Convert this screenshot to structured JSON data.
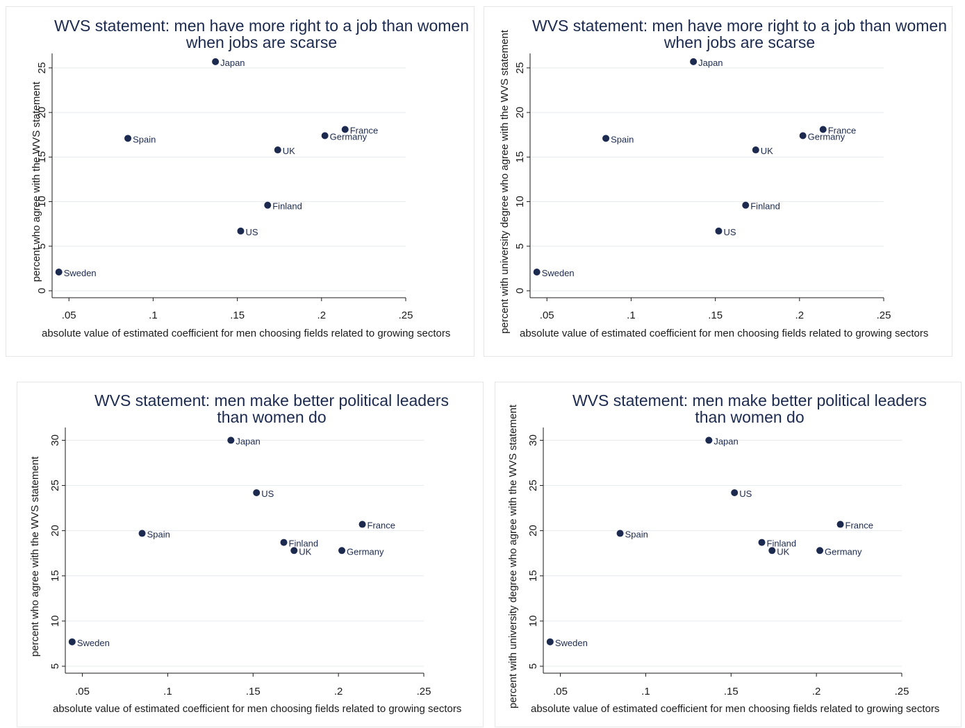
{
  "chart_data": [
    {
      "type": "scatter",
      "title": [
        "WVS statement: men have more right to a job than women",
        "when jobs are scarse"
      ],
      "xlabel": "absolute value of estimated coefficient for men choosing fields related to growing sectors",
      "ylabel": "percent who agree with the WVS statement",
      "xlim": [
        0.04,
        0.25
      ],
      "ylim": [
        0,
        26
      ],
      "xticks": [
        0.05,
        0.1,
        0.15,
        0.2,
        0.25
      ],
      "xtick_labels": [
        ".05",
        ".1",
        ".15",
        ".2",
        ".25"
      ],
      "yticks": [
        0,
        5,
        10,
        15,
        20,
        25
      ],
      "ytick_labels": [
        "0",
        "5",
        "10",
        "15",
        "20",
        "25"
      ],
      "grid": true,
      "points": [
        {
          "label": "Sweden",
          "x": 0.044,
          "y": 2.1
        },
        {
          "label": "Spain",
          "x": 0.085,
          "y": 17.1
        },
        {
          "label": "Japan",
          "x": 0.137,
          "y": 25.7
        },
        {
          "label": "US",
          "x": 0.152,
          "y": 6.7
        },
        {
          "label": "Finland",
          "x": 0.168,
          "y": 9.6
        },
        {
          "label": "UK",
          "x": 0.174,
          "y": 15.8
        },
        {
          "label": "Germany",
          "x": 0.202,
          "y": 17.4
        },
        {
          "label": "France",
          "x": 0.214,
          "y": 18.1
        }
      ]
    },
    {
      "type": "scatter",
      "title": [
        "WVS statement: men have more right to a job than women",
        "when jobs are scarse"
      ],
      "xlabel": "absolute value of estimated coefficient for men choosing fields related to growing sectors",
      "ylabel": "percent with university degree who agree with the WVS statement",
      "xlim": [
        0.04,
        0.25
      ],
      "ylim": [
        0,
        26
      ],
      "xticks": [
        0.05,
        0.1,
        0.15,
        0.2,
        0.25
      ],
      "xtick_labels": [
        ".05",
        ".1",
        ".15",
        ".2",
        ".25"
      ],
      "yticks": [
        0,
        5,
        10,
        15,
        20,
        25
      ],
      "ytick_labels": [
        "0",
        "5",
        "10",
        "15",
        "20",
        "25"
      ],
      "grid": true,
      "points": [
        {
          "label": "Sweden",
          "x": 0.044,
          "y": 2.1
        },
        {
          "label": "Spain",
          "x": 0.085,
          "y": 17.1
        },
        {
          "label": "Japan",
          "x": 0.137,
          "y": 25.7
        },
        {
          "label": "US",
          "x": 0.152,
          "y": 6.7
        },
        {
          "label": "Finland",
          "x": 0.168,
          "y": 9.6
        },
        {
          "label": "UK",
          "x": 0.174,
          "y": 15.8
        },
        {
          "label": "Germany",
          "x": 0.202,
          "y": 17.4
        },
        {
          "label": "France",
          "x": 0.214,
          "y": 18.1
        }
      ]
    },
    {
      "type": "scatter",
      "title": [
        "WVS statement: men make better political leaders",
        "than women do"
      ],
      "xlabel": "absolute value of estimated coefficient for men choosing fields related to growing sectors",
      "ylabel": "percent who agree with the WVS statement",
      "xlim": [
        0.04,
        0.25
      ],
      "ylim": [
        5,
        30.8
      ],
      "xticks": [
        0.05,
        0.1,
        0.15,
        0.2,
        0.25
      ],
      "xtick_labels": [
        ".05",
        ".1",
        ".15",
        ".2",
        ".25"
      ],
      "yticks": [
        5,
        10,
        15,
        20,
        25,
        30
      ],
      "ytick_labels": [
        "5",
        "10",
        "15",
        "20",
        "25",
        "30"
      ],
      "grid": true,
      "points": [
        {
          "label": "Sweden",
          "x": 0.044,
          "y": 7.7
        },
        {
          "label": "Spain",
          "x": 0.085,
          "y": 19.7
        },
        {
          "label": "Japan",
          "x": 0.137,
          "y": 30.0
        },
        {
          "label": "US",
          "x": 0.152,
          "y": 24.2
        },
        {
          "label": "Finland",
          "x": 0.168,
          "y": 18.7
        },
        {
          "label": "UK",
          "x": 0.174,
          "y": 17.8
        },
        {
          "label": "Germany",
          "x": 0.202,
          "y": 17.8
        },
        {
          "label": "France",
          "x": 0.214,
          "y": 20.7
        }
      ]
    },
    {
      "type": "scatter",
      "title": [
        "WVS statement: men make better political leaders",
        "than women do"
      ],
      "xlabel": "absolute value of estimated coefficient for men choosing fields related to growing sectors",
      "ylabel": "percent with university degree who agree with the WVS statement",
      "xlim": [
        0.04,
        0.25
      ],
      "ylim": [
        5,
        30.8
      ],
      "xticks": [
        0.05,
        0.1,
        0.15,
        0.2,
        0.25
      ],
      "xtick_labels": [
        ".05",
        ".1",
        ".15",
        ".2",
        ".25"
      ],
      "yticks": [
        5,
        10,
        15,
        20,
        25,
        30
      ],
      "ytick_labels": [
        "5",
        "10",
        "15",
        "20",
        "25",
        "30"
      ],
      "grid": true,
      "points": [
        {
          "label": "Sweden",
          "x": 0.044,
          "y": 7.7
        },
        {
          "label": "Spain",
          "x": 0.085,
          "y": 19.7
        },
        {
          "label": "Japan",
          "x": 0.137,
          "y": 30.0
        },
        {
          "label": "US",
          "x": 0.152,
          "y": 24.2
        },
        {
          "label": "Finland",
          "x": 0.168,
          "y": 18.7
        },
        {
          "label": "UK",
          "x": 0.174,
          "y": 17.8
        },
        {
          "label": "Germany",
          "x": 0.202,
          "y": 17.8
        },
        {
          "label": "France",
          "x": 0.214,
          "y": 20.7
        }
      ]
    }
  ],
  "colors": {
    "marker": "#1b2a4e",
    "title": "#1b2a4e",
    "grid": "#e4eaef"
  }
}
